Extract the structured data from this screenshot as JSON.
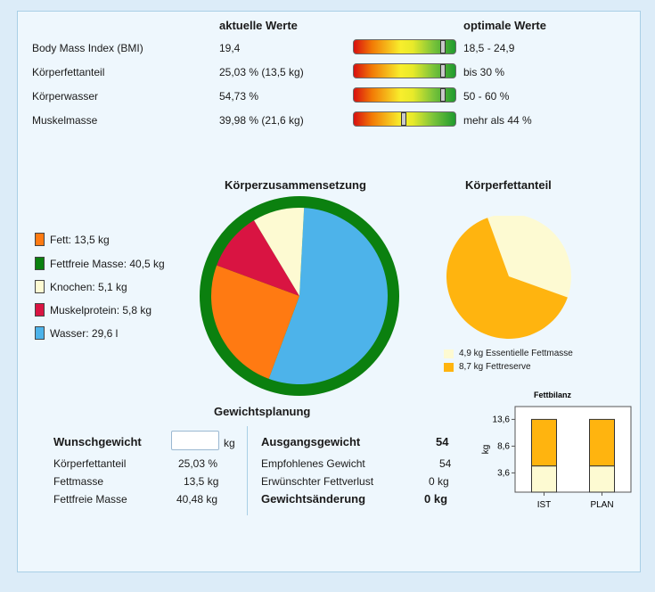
{
  "header": {
    "current_values": "aktuelle Werte",
    "optimal_values": "optimale Werte"
  },
  "metrics": [
    {
      "label": "Body Mass Index   (BMI)",
      "current": "19,4",
      "optimal": "18,5 - 24,9",
      "level": 0.88
    },
    {
      "label": "Körperfettanteil",
      "current": "25,03 %   (13,5 kg)",
      "optimal": "bis 30 %",
      "level": 0.88
    },
    {
      "label": "Körperwasser",
      "current": "54,73 %",
      "optimal": "50 - 60 %",
      "level": 0.88
    },
    {
      "label": "Muskelmasse",
      "current": "39,98 %   (21,6 kg)",
      "optimal": "mehr als 44 %",
      "level": 0.49
    }
  ],
  "composition": {
    "title": "Körperzusammensetzung",
    "legend": [
      {
        "label": "Fett: 13,5 kg",
        "color": "#ff7a12"
      },
      {
        "label": "Fettfreie Masse: 40,5 kg",
        "color": "#0b800f"
      },
      {
        "label": "Knochen: 5,1 kg",
        "color": "#fdfad2"
      },
      {
        "label": "Muskelprotein: 5,8 kg",
        "color": "#d91442"
      },
      {
        "label": "Wasser: 29,6 l",
        "color": "#4db3ea"
      }
    ]
  },
  "fat_share": {
    "title": "Körperfettanteil",
    "legend": [
      {
        "label": "4,9 kg Essentielle Fettmasse",
        "color": "#fdfad2"
      },
      {
        "label": "8,7 kg Fettreserve",
        "color": "#ffb40f"
      }
    ]
  },
  "planning": {
    "title": "Gewichtsplanung",
    "wish_weight_label": "Wunschgewicht",
    "wish_weight_value": "",
    "wish_weight_unit": "kg",
    "left_rows": [
      {
        "label": "Körperfettanteil",
        "value": "25,03 %"
      },
      {
        "label": "Fettmasse",
        "value": "13,5 kg"
      },
      {
        "label": "Fettfreie Masse",
        "value": "40,48 kg"
      }
    ],
    "start_weight_label": "Ausgangsgewicht",
    "start_weight_value": "54",
    "right_rows": [
      {
        "label": "Empfohlenes Gewicht",
        "value": "54"
      },
      {
        "label": "Erwünschter Fettverlust",
        "value": "0 kg"
      }
    ],
    "change_label": "Gewichtsänderung",
    "change_value": "0 kg"
  },
  "chart_data": [
    {
      "type": "pie",
      "title": "Körperzusammensetzung",
      "outer_ring": {
        "label": "Fettfreie Masse",
        "value": 40.5,
        "color": "#0b800f"
      },
      "slices": [
        {
          "label": "Wasser",
          "value": 29.6,
          "color": "#4db3ea"
        },
        {
          "label": "Fett",
          "value": 13.5,
          "color": "#ff7a12"
        },
        {
          "label": "Muskelprotein",
          "value": 5.8,
          "color": "#d91442"
        },
        {
          "label": "Knochen",
          "value": 5.1,
          "color": "#fdfad2"
        }
      ]
    },
    {
      "type": "pie",
      "title": "Körperfettanteil",
      "slices": [
        {
          "label": "Essentielle Fettmasse",
          "value": 4.9,
          "color": "#fdfad2"
        },
        {
          "label": "Fettreserve",
          "value": 8.7,
          "color": "#ffb40f"
        }
      ]
    },
    {
      "type": "bar",
      "stacked": true,
      "title": "Fettbilanz",
      "categories": [
        "IST",
        "PLAN"
      ],
      "series": [
        {
          "name": "Essentielle Fettmasse",
          "values": [
            4.9,
            4.9
          ],
          "color": "#fdfad2"
        },
        {
          "name": "Fettreserve",
          "values": [
            8.7,
            8.7
          ],
          "color": "#ffb40f"
        }
      ],
      "ylabel": "kg",
      "yticks": [
        "3,6",
        "8,6",
        "13,6"
      ],
      "ytick_values": [
        3.6,
        8.6,
        13.6
      ],
      "ylim": [
        0,
        16
      ]
    }
  ]
}
